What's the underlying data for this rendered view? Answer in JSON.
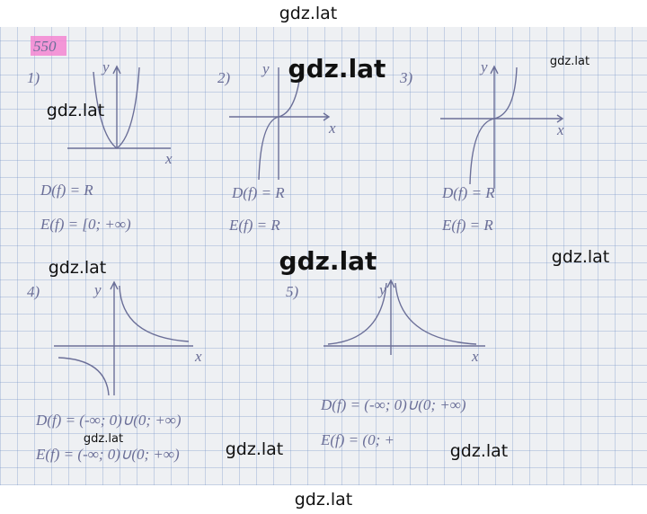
{
  "watermarks": [
    "gdz.lat",
    "gdz.lat",
    "gdz.lat",
    "gdz.lat",
    "gdz.lat",
    "gdz.lat",
    "gdz.lat",
    "gdz.lat",
    "gdz.lat",
    "gdz.lat",
    "gdz.lat"
  ],
  "problem": "550",
  "graphs": [
    {
      "label": "1)",
      "y_axis": "y",
      "x_axis": "x",
      "domain": "D(f) = R",
      "range": "E(f) = [0; +∞)"
    },
    {
      "label": "2)",
      "y_axis": "y",
      "x_axis": "x",
      "domain": "D(f) = R",
      "range": "E(f) = R"
    },
    {
      "label": "3)",
      "y_axis": "y",
      "x_axis": "x",
      "domain": "D(f) = R",
      "range": "E(f) = R"
    },
    {
      "label": "4)",
      "y_axis": "y",
      "x_axis": "x",
      "domain": "D(f) = (-∞; 0)∪(0; +∞)",
      "range": "E(f) = (-∞; 0)∪(0; +∞)"
    },
    {
      "label": "5)",
      "y_axis": "y",
      "x_axis": "x",
      "domain": "D(f) = (-∞; 0)∪(0; +∞)",
      "range": "E(f) = (0; +"
    }
  ]
}
